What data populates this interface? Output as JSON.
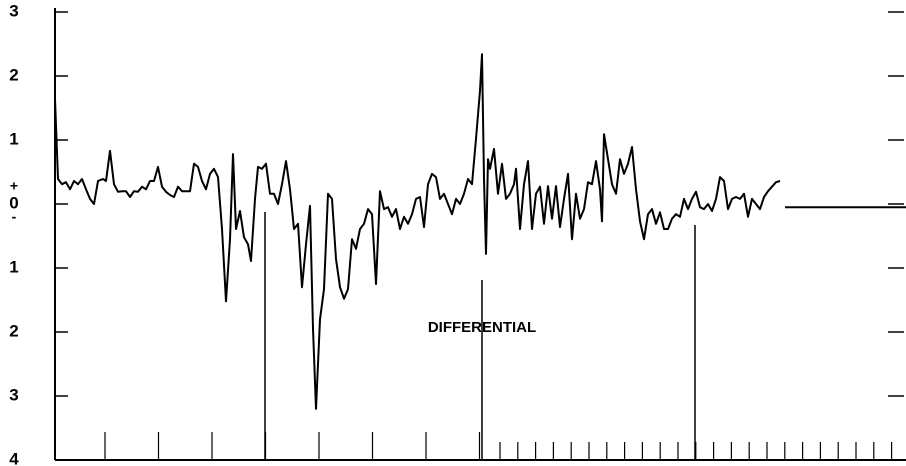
{
  "chart_data": {
    "type": "line",
    "annotation": "DIFFERENTIAL",
    "zero_signs": [
      "+",
      "-"
    ],
    "xlim": [
      0,
      851
    ],
    "ylim": [
      -4,
      3
    ],
    "yticks": [
      3,
      2,
      1,
      0,
      {
        "value": -1,
        "label": "1"
      },
      {
        "value": -2,
        "label": "2"
      },
      {
        "value": -3,
        "label": "3"
      },
      {
        "value": -4,
        "label": "4"
      }
    ],
    "color": "#000000",
    "x": [
      0,
      3,
      7,
      11,
      15,
      19,
      23,
      27,
      31,
      35,
      39,
      43,
      48,
      51,
      55,
      59,
      63,
      67,
      71,
      75,
      79,
      83,
      87,
      91,
      95,
      99,
      103,
      107,
      111,
      115,
      119,
      123,
      127,
      131,
      135,
      139,
      143,
      147,
      151,
      155,
      159,
      163,
      167,
      171,
      175,
      178,
      181,
      185,
      189,
      193,
      196,
      200,
      203,
      207,
      211,
      215,
      219,
      223,
      227,
      231,
      235,
      239,
      243,
      247,
      251,
      255,
      258,
      261,
      265,
      269,
      273,
      277,
      281,
      285,
      289,
      293,
      297,
      301,
      305,
      309,
      313,
      317,
      321,
      325,
      329,
      333,
      337,
      341,
      345,
      349,
      353,
      357,
      361,
      365,
      369,
      373,
      377,
      381,
      385,
      389,
      393,
      397,
      401,
      405,
      409,
      413,
      417,
      421,
      425,
      427,
      429,
      431,
      433,
      435,
      439,
      443,
      447,
      451,
      455,
      459,
      461,
      465,
      469,
      473,
      477,
      481,
      485,
      489,
      493,
      497,
      501,
      505,
      509,
      513,
      517,
      521,
      525,
      529,
      533,
      537,
      541,
      545,
      547,
      549,
      553,
      557,
      561,
      565,
      569,
      573,
      577,
      581,
      585,
      589,
      593,
      597,
      601,
      605,
      609,
      613,
      617,
      621,
      625,
      629,
      633,
      637,
      641,
      645,
      649,
      653,
      657,
      661,
      665,
      669,
      673,
      677,
      681,
      685,
      689,
      693,
      697,
      701,
      705,
      709,
      713,
      717,
      721,
      725,
      null,
      730,
      851
    ],
    "values": [
      1.64,
      0.39,
      0.31,
      0.34,
      0.23,
      0.36,
      0.31,
      0.39,
      0.23,
      0.08,
      0,
      0.36,
      0.39,
      0.36,
      0.83,
      0.31,
      0.19,
      0.2,
      0.2,
      0.11,
      0.2,
      0.19,
      0.27,
      0.23,
      0.36,
      0.36,
      0.58,
      0.27,
      0.19,
      0.14,
      0.11,
      0.27,
      0.2,
      0.2,
      0.2,
      0.63,
      0.58,
      0.36,
      0.23,
      0.47,
      0.55,
      0.42,
      -0.39,
      -1.52,
      -0.55,
      0.78,
      -0.39,
      -0.11,
      -0.52,
      -0.63,
      -0.89,
      0.08,
      0.58,
      0.55,
      0.63,
      0.16,
      0.16,
      0,
      0.31,
      0.67,
      0.23,
      -0.39,
      -0.31,
      -1.3,
      -0.63,
      -0.03,
      -1.95,
      -3.2,
      -1.8,
      -1.33,
      0.16,
      0.08,
      -0.86,
      -1.3,
      -1.48,
      -1.33,
      -0.55,
      -0.7,
      -0.39,
      -0.31,
      -0.08,
      -0.16,
      -1.25,
      0.2,
      -0.08,
      -0.05,
      -0.2,
      -0.08,
      -0.39,
      -0.2,
      -0.31,
      -0.16,
      0.08,
      0.11,
      -0.36,
      0.31,
      0.47,
      0.42,
      0.08,
      0.16,
      0,
      -0.16,
      0.08,
      0,
      0.16,
      0.39,
      0.31,
      1.02,
      1.77,
      2.34,
      0.39,
      -0.78,
      0.7,
      0.55,
      0.86,
      0.16,
      0.63,
      0.08,
      0.16,
      0.31,
      0.55,
      -0.39,
      0.31,
      0.67,
      -0.39,
      0.16,
      0.27,
      -0.31,
      0.28,
      -0.23,
      0.28,
      -0.36,
      0.08,
      0.47,
      -0.55,
      0.16,
      -0.23,
      -0.08,
      0.34,
      0.31,
      0.67,
      0.23,
      -0.27,
      1.09,
      0.7,
      0.31,
      0.16,
      0.7,
      0.47,
      0.63,
      0.89,
      0.23,
      -0.27,
      -0.55,
      -0.16,
      -0.08,
      -0.31,
      -0.13,
      -0.39,
      -0.39,
      -0.23,
      -0.16,
      -0.2,
      0.08,
      -0.08,
      0.08,
      0.19,
      -0.05,
      -0.08,
      0,
      -0.11,
      0.08,
      0.42,
      0.36,
      -0.08,
      0.08,
      0.11,
      0.08,
      0.16,
      -0.2,
      0.08,
      0,
      -0.08,
      0.11,
      0.2,
      0.27,
      0.34,
      0.36,
      null,
      -0.05,
      -0.05
    ]
  }
}
